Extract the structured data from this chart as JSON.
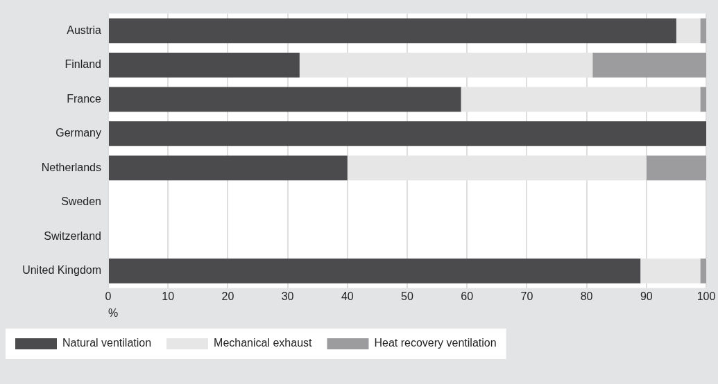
{
  "chart_data": {
    "type": "bar",
    "orientation": "horizontal",
    "stacked": true,
    "categories": [
      "Austria",
      "Finland",
      "France",
      "Germany",
      "Netherlands",
      "Sweden",
      "Switzerland",
      "United Kingdom"
    ],
    "series": [
      {
        "name": "Natural ventilation",
        "color": "#4b4b4d",
        "values": [
          95,
          32,
          59,
          100,
          40,
          null,
          null,
          89
        ]
      },
      {
        "name": "Mechanical exhaust",
        "color": "#e6e6e6",
        "values": [
          4,
          49,
          40,
          0,
          50,
          null,
          null,
          10
        ]
      },
      {
        "name": "Heat recovery ventilation",
        "color": "#9c9c9e",
        "values": [
          1,
          19,
          1,
          0,
          10,
          null,
          null,
          1
        ]
      }
    ],
    "xlabel": "%",
    "xlim": [
      0,
      100
    ],
    "xticks": [
      0,
      10,
      20,
      30,
      40,
      50,
      60,
      70,
      80,
      90,
      100
    ],
    "grid": "x",
    "legend": "bottom left"
  }
}
